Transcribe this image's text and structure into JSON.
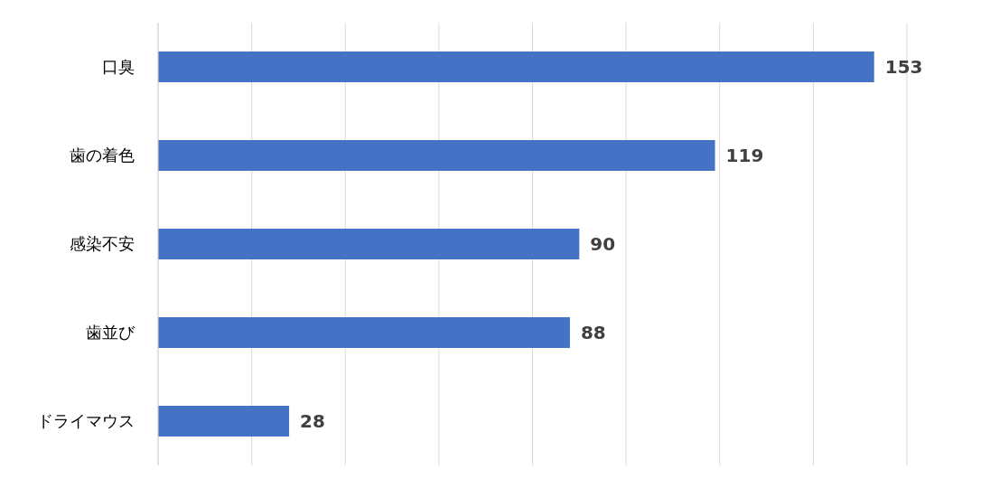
{
  "chart_data": {
    "type": "bar",
    "orientation": "horizontal",
    "categories": [
      "口臭",
      "歯の着色",
      "感染不安",
      "歯並び",
      "ドライマウス"
    ],
    "values": [
      153,
      119,
      90,
      88,
      28
    ],
    "color": "#4472c4",
    "data_labels": true,
    "grid": "x",
    "tick_labels": "y",
    "xlim": [
      0,
      160
    ],
    "xticks": [
      {
        "value": 0,
        "label": null
      },
      {
        "value": 20,
        "label": null
      },
      {
        "value": 40,
        "label": null
      },
      {
        "value": 60,
        "label": null
      },
      {
        "value": 80,
        "label": null
      },
      {
        "value": 100,
        "label": null
      },
      {
        "value": 120,
        "label": null
      },
      {
        "value": 140,
        "label": null
      },
      {
        "value": 160,
        "label": null
      }
    ]
  }
}
